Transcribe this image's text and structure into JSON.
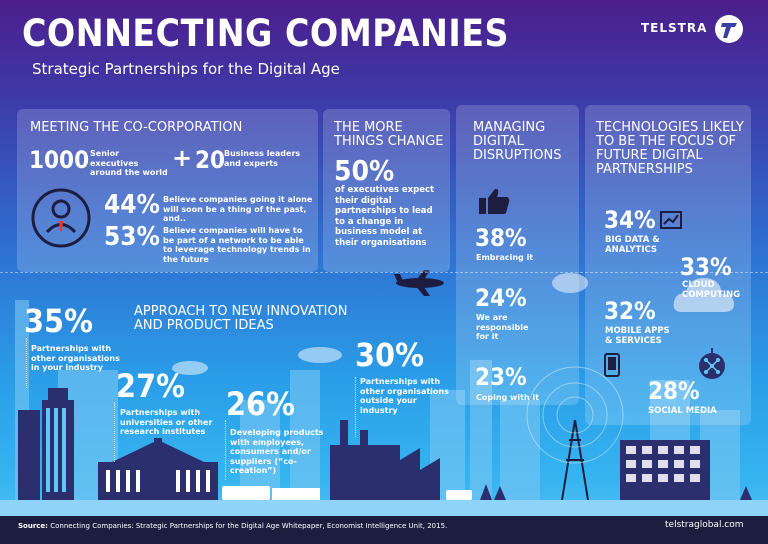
{
  "header": {
    "title": "CONNECTING COMPANIES",
    "subtitle": "Strategic Partnerships for the Digital Age",
    "logo_text": "TELSTRA"
  },
  "co_corporation": {
    "heading": "MEETING THE CO-CORPORATION",
    "count1": "1000",
    "count1_label": "Senior executives around the world",
    "plus": "+",
    "count2": "20",
    "count2_label": "Business leaders and experts",
    "stat1_value": "44%",
    "stat1_text": "Believe companies going it alone will soon be a thing of the past, and..",
    "stat2_value": "53%",
    "stat2_text": "Believe companies will have to be part of a network to be able to leverage technology trends in the future"
  },
  "more_things": {
    "heading": "THE MORE THINGS CHANGE",
    "value": "50%",
    "text": "of executives expect their digital partnerships to lead to a change in business model at their organisations"
  },
  "disruptions": {
    "heading": "MANAGING DIGITAL DISRUPTIONS",
    "items": [
      {
        "value": "38%",
        "text": "Embracing it"
      },
      {
        "value": "24%",
        "text": "We are responsible for it"
      },
      {
        "value": "23%",
        "text": "Coping with it"
      }
    ]
  },
  "technologies": {
    "heading": "TECHNOLOGIES LIKELY TO BE THE FOCUS OF FUTURE DIGITAL PARTNERSHIPS",
    "items": [
      {
        "value": "34%",
        "text": "BIG DATA & ANALYTICS",
        "icon": "chart-icon"
      },
      {
        "value": "33%",
        "text": "CLOUD COMPUTING",
        "icon": "cloud-icon"
      },
      {
        "value": "32%",
        "text": "MOBILE APPS & SERVICES",
        "icon": "phone-icon"
      },
      {
        "value": "28%",
        "text": "SOCIAL MEDIA",
        "icon": "network-icon"
      }
    ]
  },
  "innovation": {
    "heading": "APPROACH TO NEW INNOVATION AND PRODUCT IDEAS",
    "items": [
      {
        "value": "35%",
        "text": "Partnerships with other organisations in your industry"
      },
      {
        "value": "27%",
        "text": "Partnerships with universities or other research institutes"
      },
      {
        "value": "26%",
        "text": "Developing products with employees, consumers and/or suppliers (“co-creation”)"
      },
      {
        "value": "30%",
        "text": "Partnerships with other organisations outside your industry"
      }
    ]
  },
  "footer": {
    "source_label": "Source:",
    "source_text": "Connecting Companies: Strategic Partnerships for the Digital Age Whitepaper, Economist Intelligence Unit, 2015.",
    "url": "telstraglobal.com"
  },
  "colors": {
    "bg_top": "#4b1e8c",
    "bg_bottom": "#5ec4f4",
    "footer": "#1d1e3f",
    "building": "#2b2f6e"
  }
}
